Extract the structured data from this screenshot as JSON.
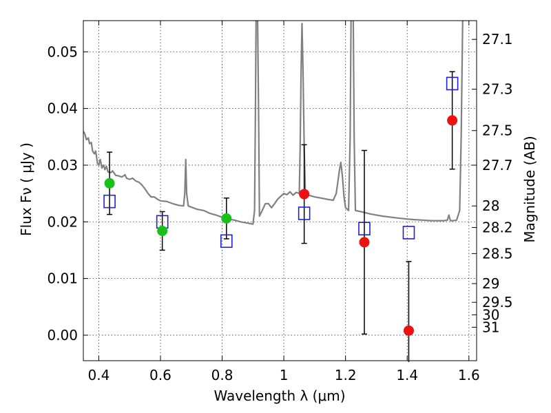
{
  "chart_data": {
    "type": "scatter",
    "xlabel": "Wavelength  λ (μm)",
    "ylabel": "Flux  Fν  ( μJy )",
    "ylabel_right": "Magnitude (AB)",
    "xlim": [
      0.35,
      1.625
    ],
    "ylim": [
      -0.0045,
      0.0555
    ],
    "grid": true,
    "x_ticks": [
      {
        "value": 0.4,
        "label": "0.4"
      },
      {
        "value": 0.6,
        "label": "0.6"
      },
      {
        "value": 0.8,
        "label": "0.8"
      },
      {
        "value": 1.0,
        "label": "1"
      },
      {
        "value": 1.2,
        "label": "1.2"
      },
      {
        "value": 1.4,
        "label": "1.4"
      },
      {
        "value": 1.6,
        "label": "1.6"
      }
    ],
    "y_ticks": [
      {
        "value": 0.0,
        "label": "0.00"
      },
      {
        "value": 0.01,
        "label": "0.01"
      },
      {
        "value": 0.02,
        "label": "0.02"
      },
      {
        "value": 0.03,
        "label": "0.03"
      },
      {
        "value": 0.04,
        "label": "0.04"
      },
      {
        "value": 0.05,
        "label": "0.05"
      }
    ],
    "right_ticks": [
      {
        "label": "27.1",
        "flux": 0.0522
      },
      {
        "label": "27.3",
        "flux": 0.0434
      },
      {
        "label": "27.5",
        "flux": 0.0361
      },
      {
        "label": "27.7",
        "flux": 0.03
      },
      {
        "label": "28",
        "flux": 0.0228
      },
      {
        "label": "28.2",
        "flux": 0.019
      },
      {
        "label": "28.5",
        "flux": 0.0144
      },
      {
        "label": "29",
        "flux": 0.0091
      },
      {
        "label": "29.5",
        "flux": 0.0058
      },
      {
        "label": "30",
        "flux": 0.0036
      },
      {
        "label": "31",
        "flux": 0.0014
      }
    ],
    "colors": {
      "green": "#18c018",
      "red": "#ee1111",
      "blue_square": "#1f1fd6",
      "model_line": "#808080",
      "errorbar": "#000000"
    },
    "series": [
      {
        "marker": "circle-green",
        "points": [
          {
            "x": 0.435,
            "y": 0.0268,
            "err": 0.0055
          },
          {
            "x": 0.606,
            "y": 0.0184,
            "err": 0.0034
          },
          {
            "x": 0.814,
            "y": 0.0206,
            "err": 0.0036
          }
        ]
      },
      {
        "marker": "circle-red",
        "points": [
          {
            "x": 1.066,
            "y": 0.0249,
            "err": 0.0087
          },
          {
            "x": 1.261,
            "y": 0.0164,
            "err": 0.0162
          },
          {
            "x": 1.405,
            "y": 0.0008,
            "err": 0.0122
          },
          {
            "x": 1.546,
            "y": 0.0379,
            "err": 0.0086
          }
        ]
      },
      {
        "marker": "square-blue",
        "points": [
          {
            "x": 0.435,
            "y": 0.0236
          },
          {
            "x": 0.606,
            "y": 0.02
          },
          {
            "x": 0.814,
            "y": 0.0166
          },
          {
            "x": 1.066,
            "y": 0.0215
          },
          {
            "x": 1.261,
            "y": 0.0188
          },
          {
            "x": 1.405,
            "y": 0.0181
          },
          {
            "x": 1.546,
            "y": 0.0444
          }
        ]
      }
    ],
    "model_spectrum": [
      [
        0.35,
        0.036
      ],
      [
        0.355,
        0.0355
      ],
      [
        0.36,
        0.0345
      ],
      [
        0.366,
        0.0348
      ],
      [
        0.37,
        0.0338
      ],
      [
        0.376,
        0.034
      ],
      [
        0.38,
        0.0325
      ],
      [
        0.386,
        0.032
      ],
      [
        0.39,
        0.0325
      ],
      [
        0.396,
        0.0303
      ],
      [
        0.4,
        0.03
      ],
      [
        0.405,
        0.031
      ],
      [
        0.41,
        0.0295
      ],
      [
        0.416,
        0.03
      ],
      [
        0.42,
        0.0292
      ],
      [
        0.425,
        0.0298
      ],
      [
        0.43,
        0.0288
      ],
      [
        0.44,
        0.0287
      ],
      [
        0.445,
        0.029
      ],
      [
        0.455,
        0.0282
      ],
      [
        0.465,
        0.0281
      ],
      [
        0.475,
        0.0279
      ],
      [
        0.485,
        0.0283
      ],
      [
        0.49,
        0.0277
      ],
      [
        0.5,
        0.0275
      ],
      [
        0.51,
        0.0277
      ],
      [
        0.52,
        0.0272
      ],
      [
        0.53,
        0.027
      ],
      [
        0.54,
        0.0265
      ],
      [
        0.55,
        0.0258
      ],
      [
        0.56,
        0.025
      ],
      [
        0.57,
        0.0244
      ],
      [
        0.58,
        0.0244
      ],
      [
        0.59,
        0.024
      ],
      [
        0.6,
        0.0237
      ],
      [
        0.62,
        0.0236
      ],
      [
        0.64,
        0.0232
      ],
      [
        0.66,
        0.0229
      ],
      [
        0.675,
        0.0228
      ],
      [
        0.679,
        0.025
      ],
      [
        0.682,
        0.031
      ],
      [
        0.685,
        0.025
      ],
      [
        0.69,
        0.0228
      ],
      [
        0.7,
        0.0226
      ],
      [
        0.72,
        0.0222
      ],
      [
        0.74,
        0.022
      ],
      [
        0.76,
        0.0215
      ],
      [
        0.78,
        0.0212
      ],
      [
        0.8,
        0.0208
      ],
      [
        0.82,
        0.0205
      ],
      [
        0.84,
        0.0203
      ],
      [
        0.86,
        0.02
      ],
      [
        0.88,
        0.0198
      ],
      [
        0.9,
        0.0196
      ],
      [
        0.905,
        0.022
      ],
      [
        0.908,
        0.04
      ],
      [
        0.91,
        0.056
      ],
      [
        0.915,
        0.056
      ],
      [
        0.918,
        0.04
      ],
      [
        0.921,
        0.021
      ],
      [
        0.93,
        0.022
      ],
      [
        0.94,
        0.0232
      ],
      [
        0.95,
        0.0232
      ],
      [
        0.96,
        0.0225
      ],
      [
        0.97,
        0.0232
      ],
      [
        0.98,
        0.024
      ],
      [
        0.99,
        0.0245
      ],
      [
        1.0,
        0.025
      ],
      [
        1.01,
        0.0248
      ],
      [
        1.02,
        0.0253
      ],
      [
        1.03,
        0.0247
      ],
      [
        1.04,
        0.0252
      ],
      [
        1.05,
        0.025
      ],
      [
        1.053,
        0.033
      ],
      [
        1.056,
        0.047
      ],
      [
        1.059,
        0.055
      ],
      [
        1.062,
        0.047
      ],
      [
        1.066,
        0.033
      ],
      [
        1.07,
        0.025
      ],
      [
        1.08,
        0.0247
      ],
      [
        1.1,
        0.0244
      ],
      [
        1.12,
        0.0242
      ],
      [
        1.14,
        0.024
      ],
      [
        1.16,
        0.0238
      ],
      [
        1.17,
        0.025
      ],
      [
        1.18,
        0.029
      ],
      [
        1.185,
        0.0305
      ],
      [
        1.19,
        0.028
      ],
      [
        1.195,
        0.0245
      ],
      [
        1.2,
        0.0225
      ],
      [
        1.21,
        0.022
      ],
      [
        1.215,
        0.035
      ],
      [
        1.218,
        0.056
      ],
      [
        1.225,
        0.056
      ],
      [
        1.228,
        0.035
      ],
      [
        1.232,
        0.022
      ],
      [
        1.25,
        0.0218
      ],
      [
        1.28,
        0.0214
      ],
      [
        1.3,
        0.0212
      ],
      [
        1.32,
        0.021
      ],
      [
        1.35,
        0.0208
      ],
      [
        1.38,
        0.0206
      ],
      [
        1.4,
        0.0205
      ],
      [
        1.42,
        0.0204
      ],
      [
        1.45,
        0.0203
      ],
      [
        1.48,
        0.0202
      ],
      [
        1.5,
        0.0202
      ],
      [
        1.52,
        0.0202
      ],
      [
        1.53,
        0.0203
      ],
      [
        1.535,
        0.0212
      ],
      [
        1.54,
        0.0202
      ],
      [
        1.55,
        0.0202
      ],
      [
        1.56,
        0.0203
      ],
      [
        1.57,
        0.022
      ],
      [
        1.575,
        0.035
      ],
      [
        1.58,
        0.056
      ]
    ]
  }
}
